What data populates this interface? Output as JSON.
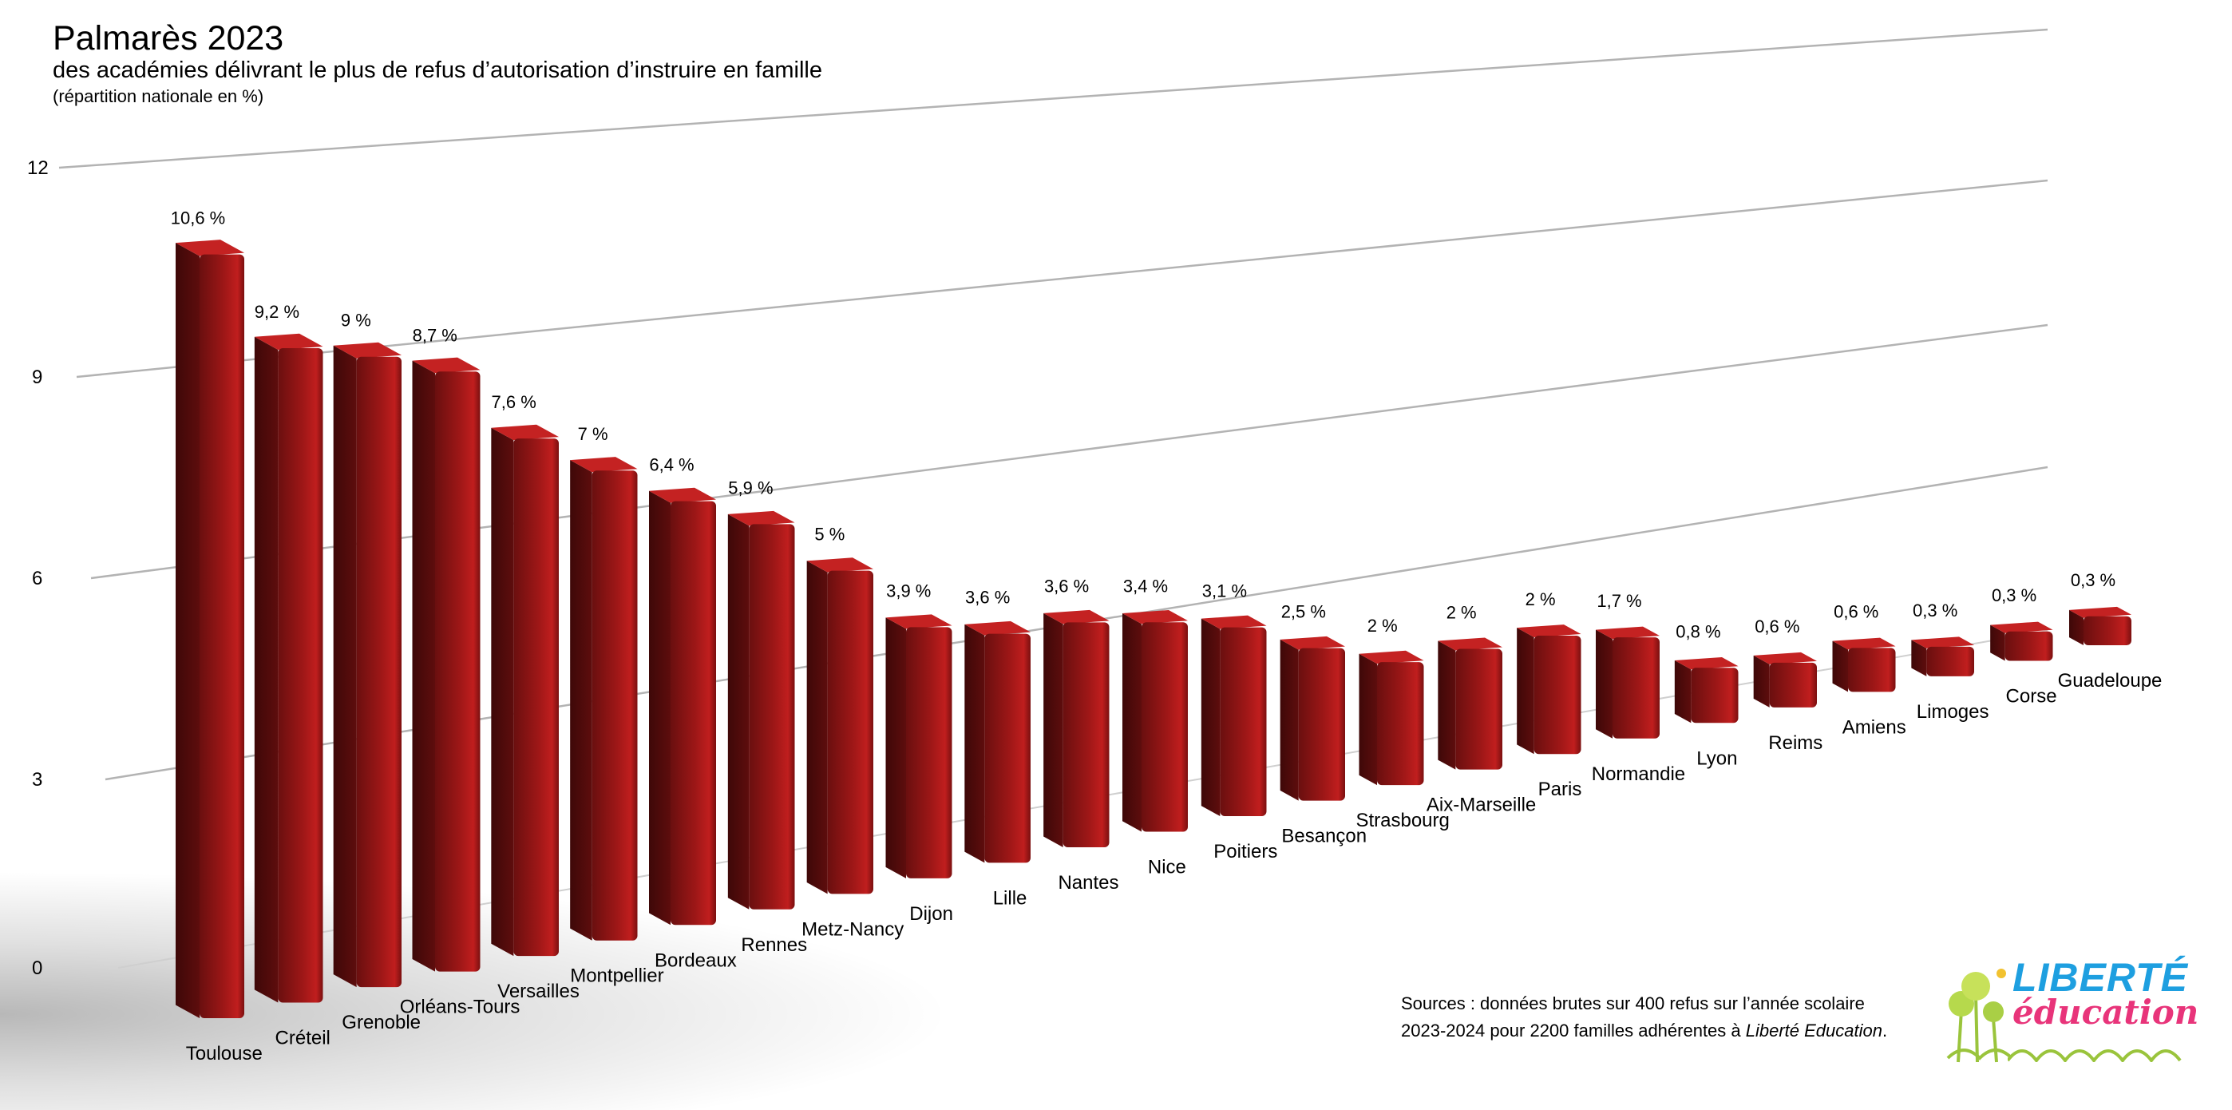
{
  "title": "Palmarès 2023",
  "subtitle": "des académies délivrant le plus de refus d’autorisation d’instruire en famille",
  "note": "(répartition nationale en %)",
  "source": {
    "line1": "Sources : données brutes sur 400 refus sur l’année scolaire",
    "line2_prefix": "2023-2024 pour 2200 familles adhérentes à ",
    "line2_italic": "Liberté Education",
    "line2_suffix": "."
  },
  "logo": {
    "word1": "LIBERTÉ",
    "word2": "éducation"
  },
  "colors": {
    "bar_front": "#8e1414",
    "bar_side": "#5a0d0d",
    "bar_top": "#c42222",
    "grid": "#b3b3b3"
  },
  "chart_data": {
    "type": "bar",
    "title": "Palmarès 2023",
    "ylim": [
      0,
      12
    ],
    "yticks": [
      "0",
      "3",
      "6",
      "9",
      "12"
    ],
    "grid": true,
    "categories": [
      "Toulouse",
      "Créteil",
      "Grenoble",
      "Orléans-Tours",
      "Versailles",
      "Montpellier",
      "Bordeaux",
      "Rennes",
      "Metz-Nancy",
      "Dijon",
      "Lille",
      "Nantes",
      "Nice",
      "Poitiers",
      "Besançon",
      "Strasbourg",
      "Aix-Marseille",
      "Paris",
      "Normandie",
      "Lyon",
      "Reims",
      "Amiens",
      "Limoges",
      "Corse",
      "Guadeloupe"
    ],
    "values": [
      10.6,
      9.2,
      9,
      8.7,
      7.6,
      7,
      6.4,
      5.9,
      5,
      3.9,
      3.6,
      3.6,
      3.4,
      3.1,
      2.5,
      2,
      2,
      2,
      1.7,
      0.8,
      0.6,
      0.6,
      0.3,
      0.3,
      0.3
    ],
    "labels": [
      "10,6 %",
      "9,2 %",
      "9 %",
      "8,7 %",
      "7,6 %",
      "7 %",
      "6,4 %",
      "5,9 %",
      "5 %",
      "3,9 %",
      "3,6 %",
      "3,6 %",
      "3,4 %",
      "3,1 %",
      "2,5 %",
      "2 %",
      "2 %",
      "2 %",
      "1,7 %",
      "0,8 %",
      "0,6 %",
      "0,6 %",
      "0,3 %",
      "0,3 %",
      "0,3 %"
    ]
  }
}
